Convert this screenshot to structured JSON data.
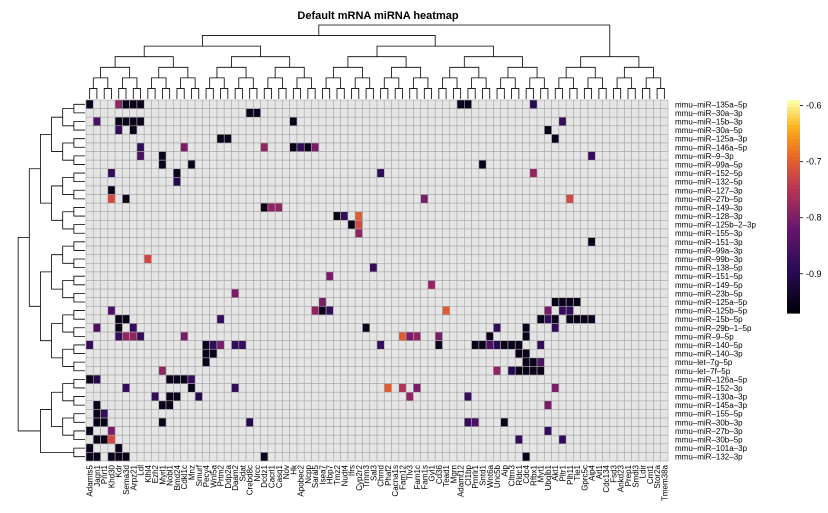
{
  "chart_data": {
    "type": "heatmap",
    "title": "Default mRNA miRNA heatmap",
    "rows": [
      "mmu–miR–135a–5p",
      "mmu–miR–30a–3p",
      "mmu–miR–15b–3p",
      "mmu–miR–30a–5p",
      "mmu–miR–125a–3p",
      "mmu–miR–146a–5p",
      "mmu–miR–9–3p",
      "mmu–miR–99a–5p",
      "mmu–miR–152–5p",
      "mmu–miR–132–5p",
      "mmu–miR–127–3p",
      "mmu–miR–27b–5p",
      "mmu–miR–149–3p",
      "mmu–miR–128–3p",
      "mmu–miR–125b–2–3p",
      "mmu–miR–155–3p",
      "mmu–miR–151–3p",
      "mmu–miR–99a–3p",
      "mmu–miR–99b–3p",
      "mmu–miR–138–5p",
      "mmu–miR–151–5p",
      "mmu–miR–149–5p",
      "mmu–miR–23b–5p",
      "mmu–miR–125a–5p",
      "mmu–miR–125b–5p",
      "mmu–miR–15b–5p",
      "mmu–miR–29b–1–5p",
      "mmu–miR–9–5p",
      "mmu–miR–140–5p",
      "mmu–miR–140–3p",
      "mmu–let–7g–5p",
      "mmu–let–7f–5p",
      "mmu–miR–126a–5p",
      "mmu–miR–152–3p",
      "mmu–miR–130a–3p",
      "mmu–miR–145a–3p",
      "mmu–miR–155–5p",
      "mmu–miR–30b–3p",
      "mmu–miR–27b–3p",
      "mmu–miR–30b–5p",
      "mmu–miR–101a–3p",
      "mmu–miR–132–3p"
    ],
    "columns": [
      "Adamts5",
      "Jagn1",
      "Pnrt1",
      "Khd30",
      "Kdr",
      "Sema3d",
      "Arpz21",
      "Ldl",
      "Klhl4",
      "Ezh2",
      "Myrl1",
      "Nobl1",
      "Bmd24",
      "Cdkl1c",
      "Mnz",
      "Smurf",
      "Pecy4",
      "Wnl5a",
      "Prtm2",
      "Ddp2a",
      "Daam2",
      "Sdat",
      "Crebd8c",
      "Nrcc",
      "Dcdz1",
      "Cacrl1",
      "Casq1",
      "Nov",
      "Hk",
      "Apobec2",
      "Ncpp",
      "Saral5",
      "Isea7",
      "Hbp7",
      "Tmz2",
      "Nudt4",
      "Ifrs",
      "Cyp2r2",
      "Trnm3",
      "Sal3",
      "Chrnd",
      "Phaf2",
      "Cacna1s",
      "Fam12",
      "Tlv3",
      "Fam1c",
      "Fam1s",
      "Gyl1",
      "Cd36",
      "Tead1",
      "Mgrn",
      "Adamt12",
      "Cl1bp",
      "Pmrlr1",
      "Sntd1",
      "Wnt6a",
      "Unc5b",
      "Aip",
      "Cltrn3",
      "Rldc1",
      "Cdc4",
      "Rfbx1",
      "Myt1",
      "Ubqlb1",
      "Akt1",
      "Pltr1",
      "Plh11",
      "Tle1",
      "Gprc5c",
      "Aip4",
      "Arl1",
      "Cdc134",
      "Fsd3",
      "Ankd23",
      "Prep1",
      "Smdl3",
      "Ldir",
      "Cmt1",
      "Stor2a",
      "Tmem38a"
    ],
    "cells": [
      [
        0,
        0,
        -0.95
      ],
      [
        0,
        4,
        -0.78
      ],
      [
        0,
        5,
        -0.95
      ],
      [
        0,
        6,
        -0.95
      ],
      [
        0,
        7,
        -0.95
      ],
      [
        0,
        51,
        -0.95
      ],
      [
        0,
        52,
        -0.95
      ],
      [
        0,
        61,
        -0.9
      ],
      [
        1,
        22,
        -0.95
      ],
      [
        1,
        23,
        -0.95
      ],
      [
        2,
        1,
        -0.85
      ],
      [
        2,
        4,
        -0.95
      ],
      [
        2,
        5,
        -0.95
      ],
      [
        2,
        6,
        -0.95
      ],
      [
        2,
        7,
        -0.95
      ],
      [
        2,
        28,
        -0.95
      ],
      [
        2,
        65,
        -0.88
      ],
      [
        3,
        4,
        -0.88
      ],
      [
        3,
        6,
        -0.95
      ],
      [
        3,
        63,
        -0.95
      ],
      [
        4,
        18,
        -0.95
      ],
      [
        4,
        19,
        -0.95
      ],
      [
        4,
        64,
        -0.95
      ],
      [
        5,
        7,
        -0.88
      ],
      [
        5,
        13,
        -0.8
      ],
      [
        5,
        24,
        -0.78
      ],
      [
        5,
        28,
        -0.95
      ],
      [
        5,
        29,
        -0.88
      ],
      [
        5,
        30,
        -0.95
      ],
      [
        5,
        31,
        -0.8
      ],
      [
        6,
        7,
        -0.85
      ],
      [
        6,
        10,
        -0.95
      ],
      [
        6,
        69,
        -0.88
      ],
      [
        7,
        10,
        -0.95
      ],
      [
        7,
        14,
        -0.95
      ],
      [
        7,
        54,
        -0.95
      ],
      [
        8,
        3,
        -0.88
      ],
      [
        8,
        12,
        -0.95
      ],
      [
        8,
        40,
        -0.88
      ],
      [
        8,
        61,
        -0.78
      ],
      [
        9,
        12,
        -0.9
      ],
      [
        10,
        3,
        -0.95
      ],
      [
        11,
        3,
        -0.72
      ],
      [
        11,
        5,
        -0.95
      ],
      [
        11,
        46,
        -0.8
      ],
      [
        11,
        66,
        -0.72
      ],
      [
        12,
        24,
        -0.95
      ],
      [
        12,
        25,
        -0.78
      ],
      [
        12,
        26,
        -0.78
      ],
      [
        13,
        34,
        -0.95
      ],
      [
        13,
        35,
        -0.88
      ],
      [
        13,
        37,
        -0.7
      ],
      [
        14,
        36,
        -0.95
      ],
      [
        14,
        37,
        -0.72
      ],
      [
        15,
        37,
        -0.78
      ],
      [
        16,
        69,
        -0.95
      ],
      [
        18,
        8,
        -0.72
      ],
      [
        19,
        39,
        -0.88
      ],
      [
        20,
        33,
        -0.8
      ],
      [
        21,
        47,
        -0.78
      ],
      [
        22,
        20,
        -0.8
      ],
      [
        23,
        32,
        -0.8
      ],
      [
        23,
        64,
        -0.95
      ],
      [
        23,
        65,
        -0.95
      ],
      [
        23,
        66,
        -0.95
      ],
      [
        23,
        67,
        -0.95
      ],
      [
        24,
        3,
        -0.85
      ],
      [
        24,
        31,
        -0.78
      ],
      [
        24,
        32,
        -0.95
      ],
      [
        24,
        33,
        -0.88
      ],
      [
        24,
        49,
        -0.7
      ],
      [
        24,
        63,
        -0.8
      ],
      [
        24,
        65,
        -0.88
      ],
      [
        24,
        66,
        -0.88
      ],
      [
        25,
        4,
        -0.95
      ],
      [
        25,
        5,
        -0.95
      ],
      [
        25,
        18,
        -0.88
      ],
      [
        25,
        62,
        -0.95
      ],
      [
        25,
        63,
        -0.88
      ],
      [
        25,
        64,
        -0.95
      ],
      [
        25,
        66,
        -0.95
      ],
      [
        25,
        67,
        -0.95
      ],
      [
        25,
        68,
        -0.95
      ],
      [
        25,
        69,
        -0.95
      ],
      [
        26,
        1,
        -0.85
      ],
      [
        26,
        4,
        -0.95
      ],
      [
        26,
        6,
        -0.88
      ],
      [
        26,
        38,
        -0.95
      ],
      [
        26,
        56,
        -0.88
      ],
      [
        26,
        60,
        -0.95
      ],
      [
        26,
        64,
        -0.88
      ],
      [
        27,
        4,
        -0.88
      ],
      [
        27,
        5,
        -0.78
      ],
      [
        27,
        6,
        -0.78
      ],
      [
        27,
        7,
        -0.88
      ],
      [
        27,
        13,
        -0.8
      ],
      [
        27,
        43,
        -0.7
      ],
      [
        27,
        44,
        -0.8
      ],
      [
        27,
        45,
        -0.78
      ],
      [
        27,
        48,
        -0.8
      ],
      [
        27,
        55,
        -0.95
      ],
      [
        27,
        60,
        -0.95
      ],
      [
        28,
        0,
        -0.88
      ],
      [
        28,
        16,
        -0.95
      ],
      [
        28,
        17,
        -0.88
      ],
      [
        28,
        18,
        -0.8
      ],
      [
        28,
        20,
        -0.88
      ],
      [
        28,
        21,
        -0.88
      ],
      [
        28,
        40,
        -0.88
      ],
      [
        28,
        48,
        -0.95
      ],
      [
        28,
        53,
        -0.95
      ],
      [
        28,
        54,
        -0.95
      ],
      [
        28,
        55,
        -0.85
      ],
      [
        28,
        56,
        -0.9
      ],
      [
        28,
        57,
        -0.95
      ],
      [
        28,
        58,
        -0.95
      ],
      [
        28,
        59,
        -0.95
      ],
      [
        28,
        62,
        -0.88
      ],
      [
        29,
        16,
        -0.95
      ],
      [
        29,
        17,
        -0.95
      ],
      [
        29,
        59,
        -0.95
      ],
      [
        29,
        60,
        -0.95
      ],
      [
        30,
        16,
        -0.95
      ],
      [
        30,
        60,
        -0.95
      ],
      [
        30,
        61,
        -0.95
      ],
      [
        30,
        62,
        -0.85
      ],
      [
        31,
        10,
        -0.78
      ],
      [
        31,
        56,
        -0.78
      ],
      [
        31,
        58,
        -0.9
      ],
      [
        31,
        59,
        -0.95
      ],
      [
        31,
        60,
        -0.95
      ],
      [
        31,
        61,
        -0.95
      ],
      [
        31,
        62,
        -0.95
      ],
      [
        32,
        0,
        -0.95
      ],
      [
        32,
        1,
        -0.9
      ],
      [
        32,
        11,
        -0.95
      ],
      [
        32,
        12,
        -0.95
      ],
      [
        32,
        13,
        -0.95
      ],
      [
        32,
        14,
        -0.88
      ],
      [
        33,
        5,
        -0.88
      ],
      [
        33,
        14,
        -0.95
      ],
      [
        33,
        20,
        -0.88
      ],
      [
        33,
        41,
        -0.7
      ],
      [
        33,
        43,
        -0.75
      ],
      [
        33,
        45,
        -0.8
      ],
      [
        33,
        64,
        -0.8
      ],
      [
        34,
        9,
        -0.88
      ],
      [
        34,
        11,
        -0.95
      ],
      [
        34,
        12,
        -0.95
      ],
      [
        34,
        15,
        -0.9
      ],
      [
        34,
        44,
        -0.78
      ],
      [
        34,
        52,
        -0.88
      ],
      [
        35,
        1,
        -0.95
      ],
      [
        35,
        10,
        -0.95
      ],
      [
        35,
        11,
        -0.95
      ],
      [
        35,
        63,
        -0.8
      ],
      [
        36,
        1,
        -0.95
      ],
      [
        36,
        2,
        -0.88
      ],
      [
        37,
        1,
        -0.95
      ],
      [
        37,
        2,
        -0.95
      ],
      [
        37,
        10,
        -0.95
      ],
      [
        37,
        22,
        -0.9
      ],
      [
        37,
        52,
        -0.88
      ],
      [
        37,
        53,
        -0.85
      ],
      [
        37,
        57,
        -0.95
      ],
      [
        38,
        0,
        -0.95
      ],
      [
        38,
        3,
        -0.8
      ],
      [
        38,
        63,
        -0.88
      ],
      [
        39,
        1,
        -0.95
      ],
      [
        39,
        2,
        -0.95
      ],
      [
        39,
        3,
        -0.72
      ],
      [
        39,
        59,
        -0.88
      ],
      [
        39,
        65,
        -0.88
      ],
      [
        40,
        0,
        -0.95
      ],
      [
        40,
        4,
        -0.95
      ],
      [
        41,
        0,
        -0.95
      ],
      [
        41,
        1,
        -0.95
      ],
      [
        41,
        3,
        -0.95
      ],
      [
        41,
        4,
        -0.95
      ],
      [
        41,
        5,
        -0.95
      ],
      [
        41,
        24,
        -0.95
      ],
      [
        41,
        60,
        -0.95
      ]
    ],
    "legend": {
      "ticks": [
        "-0.6",
        "-0.7",
        "-0.8",
        "-0.9"
      ],
      "range": [
        -0.97,
        -0.59
      ]
    }
  }
}
